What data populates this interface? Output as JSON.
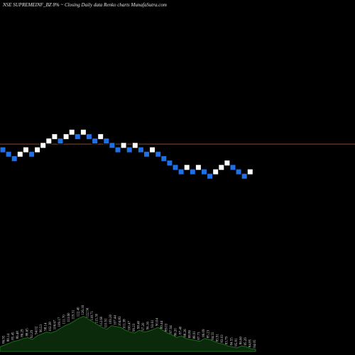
{
  "chart_data": {
    "type": "renko",
    "title": "NSE SUPREMEINF_BZ 8% ~  Closing Daily data  Renko  charts MunafaSutra.com",
    "colors": {
      "background": "#000000",
      "up_brick": "#ffffff",
      "down_brick": "#1f6fe6",
      "price_line": "#8b4a2a",
      "volume_fill": "#0b2a0b",
      "volume_line": "#1b6b1b"
    },
    "bricks": [
      {
        "col": 0,
        "row": 0,
        "dir": "down"
      },
      {
        "col": 1,
        "row": 1,
        "dir": "down"
      },
      {
        "col": 2,
        "row": 2,
        "dir": "down"
      },
      {
        "col": 3,
        "row": 1,
        "dir": "up"
      },
      {
        "col": 4,
        "row": 0,
        "dir": "up"
      },
      {
        "col": 5,
        "row": 1,
        "dir": "down"
      },
      {
        "col": 6,
        "row": 0,
        "dir": "up"
      },
      {
        "col": 7,
        "row": -1,
        "dir": "up"
      },
      {
        "col": 8,
        "row": -2,
        "dir": "up"
      },
      {
        "col": 9,
        "row": -3,
        "dir": "up"
      },
      {
        "col": 10,
        "row": -2,
        "dir": "down"
      },
      {
        "col": 11,
        "row": -3,
        "dir": "up"
      },
      {
        "col": 12,
        "row": -4,
        "dir": "up"
      },
      {
        "col": 13,
        "row": -3,
        "dir": "down"
      },
      {
        "col": 14,
        "row": -4,
        "dir": "up"
      },
      {
        "col": 15,
        "row": -3,
        "dir": "down"
      },
      {
        "col": 16,
        "row": -2,
        "dir": "down"
      },
      {
        "col": 17,
        "row": -3,
        "dir": "up"
      },
      {
        "col": 18,
        "row": -2,
        "dir": "down"
      },
      {
        "col": 19,
        "row": -1,
        "dir": "down"
      },
      {
        "col": 20,
        "row": 0,
        "dir": "down"
      },
      {
        "col": 21,
        "row": -1,
        "dir": "up"
      },
      {
        "col": 22,
        "row": 0,
        "dir": "down"
      },
      {
        "col": 23,
        "row": -1,
        "dir": "up"
      },
      {
        "col": 24,
        "row": 0,
        "dir": "down"
      },
      {
        "col": 25,
        "row": 1,
        "dir": "down"
      },
      {
        "col": 26,
        "row": 0,
        "dir": "up"
      },
      {
        "col": 27,
        "row": 1,
        "dir": "down"
      },
      {
        "col": 28,
        "row": 2,
        "dir": "down"
      },
      {
        "col": 29,
        "row": 3,
        "dir": "down"
      },
      {
        "col": 30,
        "row": 4,
        "dir": "down"
      },
      {
        "col": 31,
        "row": 5,
        "dir": "down"
      },
      {
        "col": 32,
        "row": 4,
        "dir": "up"
      },
      {
        "col": 33,
        "row": 5,
        "dir": "down"
      },
      {
        "col": 34,
        "row": 4,
        "dir": "up"
      },
      {
        "col": 35,
        "row": 5,
        "dir": "down"
      },
      {
        "col": 36,
        "row": 6,
        "dir": "down"
      },
      {
        "col": 37,
        "row": 5,
        "dir": "up"
      },
      {
        "col": 38,
        "row": 4,
        "dir": "up"
      },
      {
        "col": 39,
        "row": 3,
        "dir": "up"
      },
      {
        "col": 40,
        "row": 4,
        "dir": "down"
      },
      {
        "col": 41,
        "row": 5,
        "dir": "down"
      },
      {
        "col": 42,
        "row": 6,
        "dir": "down"
      },
      {
        "col": 43,
        "row": 5,
        "dir": "up"
      }
    ],
    "volume_series": [
      0.1,
      0.14,
      0.18,
      0.22,
      0.24,
      0.28,
      0.3,
      0.26,
      0.34,
      0.38,
      0.42,
      0.4,
      0.44,
      0.5,
      0.56,
      0.6,
      0.66,
      0.72,
      0.76,
      0.7,
      0.64,
      0.58,
      0.52,
      0.48,
      0.56,
      0.54,
      0.52,
      0.46,
      0.42,
      0.4,
      0.46,
      0.42,
      0.44,
      0.48,
      0.52,
      0.46,
      0.4,
      0.36,
      0.3,
      0.34,
      0.28,
      0.26,
      0.24,
      0.22,
      0.28,
      0.26,
      0.22,
      0.18,
      0.16,
      0.12,
      0.1,
      0.08,
      0.12,
      0.1,
      0.06,
      0.05
    ],
    "volume_labels": [
      "85.05",
      "86.95",
      "88.14",
      "85.45",
      "86.48",
      "86.29",
      "88.65",
      "92.29",
      "94.02",
      "96.53",
      "98.14",
      "102.38",
      "106.67",
      "109.17",
      "111.70",
      "113.60",
      "119.31",
      "122.40",
      "126.16",
      "122.56",
      "118.71",
      "115.30",
      "112.60",
      "110.91",
      "109.20",
      "107.44",
      "104.83",
      "101.38",
      "100.47",
      "99.23",
      "98.40",
      "97.20",
      "96.16",
      "93.61",
      "90.04",
      "89.44",
      "89.03",
      "87.94",
      "86.20",
      "87.40",
      "88.26",
      "88.80",
      "88.91",
      "87.73",
      "86.09",
      "85.23",
      "84.55",
      "83.91",
      "83.03",
      "83.79",
      "84.55",
      "85.81",
      "86.60",
      "85.29",
      "84.85",
      "84.05"
    ]
  }
}
